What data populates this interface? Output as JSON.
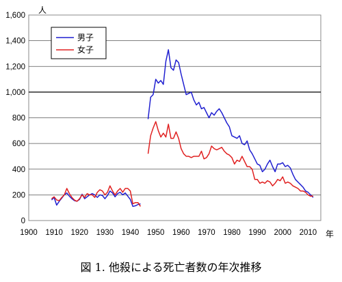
{
  "chart_data": {
    "type": "line",
    "title": "",
    "y_unit": "人",
    "x_unit": "年",
    "ylim": [
      0,
      1600
    ],
    "xlim": [
      1900,
      2015
    ],
    "y_ticks": [
      0,
      200,
      400,
      600,
      800,
      1000,
      1200,
      1400,
      1600
    ],
    "y_tick_labels": [
      "0",
      "200",
      "400",
      "600",
      "800",
      "1,000",
      "1,200",
      "1,400",
      "1,600"
    ],
    "x_ticks": [
      1900,
      1910,
      1920,
      1930,
      1940,
      1950,
      1960,
      1970,
      1980,
      1990,
      2000,
      2010
    ],
    "x_tick_labels": [
      "1900",
      "1910",
      "1920",
      "1930",
      "1940",
      "1950",
      "1960",
      "1970",
      "1980",
      "1990",
      "2000",
      "2010"
    ],
    "grid": "horizontal",
    "legend_position": "top-left",
    "series": [
      {
        "name": "男子",
        "color": "#1f1fd0",
        "segments": [
          [
            [
              1909,
              160
            ],
            [
              1910,
              180
            ],
            [
              1911,
              120
            ],
            [
              1912,
              150
            ],
            [
              1913,
              175
            ],
            [
              1914,
              200
            ],
            [
              1915,
              215
            ],
            [
              1916,
              190
            ],
            [
              1917,
              170
            ],
            [
              1918,
              155
            ],
            [
              1919,
              150
            ],
            [
              1920,
              165
            ],
            [
              1921,
              205
            ],
            [
              1922,
              170
            ],
            [
              1923,
              185
            ],
            [
              1924,
              200
            ],
            [
              1925,
              210
            ],
            [
              1926,
              200
            ],
            [
              1927,
              180
            ],
            [
              1928,
              200
            ],
            [
              1929,
              195
            ],
            [
              1930,
              170
            ],
            [
              1931,
              195
            ],
            [
              1932,
              230
            ],
            [
              1933,
              215
            ],
            [
              1934,
              185
            ],
            [
              1935,
              210
            ],
            [
              1936,
              220
            ],
            [
              1937,
              200
            ],
            [
              1938,
              215
            ],
            [
              1939,
              190
            ],
            [
              1940,
              165
            ],
            [
              1941,
              110
            ],
            [
              1942,
              115
            ],
            [
              1943,
              125
            ],
            [
              1944,
              130
            ]
          ],
          [
            [
              1947,
              790
            ],
            [
              1948,
              960
            ],
            [
              1949,
              980
            ],
            [
              1950,
              1100
            ],
            [
              1951,
              1070
            ],
            [
              1952,
              1090
            ],
            [
              1953,
              1060
            ],
            [
              1954,
              1240
            ],
            [
              1955,
              1330
            ],
            [
              1956,
              1190
            ],
            [
              1957,
              1170
            ],
            [
              1958,
              1250
            ],
            [
              1959,
              1230
            ],
            [
              1960,
              1140
            ],
            [
              1961,
              1060
            ],
            [
              1962,
              980
            ],
            [
              1963,
              990
            ],
            [
              1964,
              1000
            ],
            [
              1965,
              940
            ],
            [
              1966,
              900
            ],
            [
              1967,
              920
            ],
            [
              1968,
              870
            ],
            [
              1969,
              880
            ],
            [
              1970,
              840
            ],
            [
              1971,
              800
            ],
            [
              1972,
              840
            ],
            [
              1973,
              820
            ],
            [
              1974,
              850
            ],
            [
              1975,
              870
            ],
            [
              1976,
              840
            ],
            [
              1977,
              800
            ],
            [
              1978,
              760
            ],
            [
              1979,
              730
            ],
            [
              1980,
              660
            ],
            [
              1981,
              650
            ],
            [
              1982,
              640
            ],
            [
              1983,
              660
            ],
            [
              1984,
              600
            ],
            [
              1985,
              590
            ],
            [
              1986,
              620
            ],
            [
              1987,
              550
            ],
            [
              1988,
              520
            ],
            [
              1989,
              480
            ],
            [
              1990,
              440
            ],
            [
              1991,
              430
            ],
            [
              1992,
              380
            ],
            [
              1993,
              400
            ],
            [
              1994,
              440
            ],
            [
              1995,
              470
            ],
            [
              1996,
              420
            ],
            [
              1997,
              380
            ],
            [
              1998,
              440
            ],
            [
              1999,
              440
            ],
            [
              2000,
              450
            ],
            [
              2001,
              420
            ],
            [
              2002,
              430
            ],
            [
              2003,
              410
            ],
            [
              2004,
              360
            ],
            [
              2005,
              320
            ],
            [
              2006,
              300
            ],
            [
              2007,
              280
            ],
            [
              2008,
              260
            ],
            [
              2009,
              230
            ],
            [
              2010,
              220
            ],
            [
              2011,
              200
            ],
            [
              2012,
              180
            ]
          ]
        ]
      },
      {
        "name": "女子",
        "color": "#e02020",
        "segments": [
          [
            [
              1909,
              170
            ],
            [
              1910,
              185
            ],
            [
              1911,
              160
            ],
            [
              1912,
              155
            ],
            [
              1913,
              180
            ],
            [
              1914,
              200
            ],
            [
              1915,
              250
            ],
            [
              1916,
              210
            ],
            [
              1917,
              180
            ],
            [
              1918,
              160
            ],
            [
              1919,
              150
            ],
            [
              1920,
              170
            ],
            [
              1921,
              200
            ],
            [
              1922,
              180
            ],
            [
              1923,
              210
            ],
            [
              1924,
              200
            ],
            [
              1925,
              200
            ],
            [
              1926,
              180
            ],
            [
              1927,
              220
            ],
            [
              1928,
              240
            ],
            [
              1929,
              230
            ],
            [
              1930,
              200
            ],
            [
              1931,
              220
            ],
            [
              1932,
              270
            ],
            [
              1933,
              230
            ],
            [
              1934,
              200
            ],
            [
              1935,
              230
            ],
            [
              1936,
              250
            ],
            [
              1937,
              220
            ],
            [
              1938,
              250
            ],
            [
              1939,
              250
            ],
            [
              1940,
              230
            ],
            [
              1941,
              130
            ],
            [
              1942,
              140
            ],
            [
              1943,
              140
            ],
            [
              1944,
              110
            ]
          ],
          [
            [
              1947,
              520
            ],
            [
              1948,
              660
            ],
            [
              1949,
              720
            ],
            [
              1950,
              770
            ],
            [
              1951,
              700
            ],
            [
              1952,
              650
            ],
            [
              1953,
              680
            ],
            [
              1954,
              650
            ],
            [
              1955,
              750
            ],
            [
              1956,
              640
            ],
            [
              1957,
              640
            ],
            [
              1958,
              690
            ],
            [
              1959,
              640
            ],
            [
              1960,
              560
            ],
            [
              1961,
              520
            ],
            [
              1962,
              500
            ],
            [
              1963,
              500
            ],
            [
              1964,
              490
            ],
            [
              1965,
              500
            ],
            [
              1966,
              500
            ],
            [
              1967,
              500
            ],
            [
              1968,
              540
            ],
            [
              1969,
              480
            ],
            [
              1970,
              490
            ],
            [
              1971,
              520
            ],
            [
              1972,
              580
            ],
            [
              1973,
              560
            ],
            [
              1974,
              550
            ],
            [
              1975,
              560
            ],
            [
              1976,
              570
            ],
            [
              1977,
              540
            ],
            [
              1978,
              520
            ],
            [
              1979,
              510
            ],
            [
              1980,
              490
            ],
            [
              1981,
              440
            ],
            [
              1982,
              470
            ],
            [
              1983,
              460
            ],
            [
              1984,
              500
            ],
            [
              1985,
              460
            ],
            [
              1986,
              420
            ],
            [
              1987,
              420
            ],
            [
              1988,
              400
            ],
            [
              1989,
              320
            ],
            [
              1990,
              320
            ],
            [
              1991,
              290
            ],
            [
              1992,
              300
            ],
            [
              1993,
              290
            ],
            [
              1994,
              310
            ],
            [
              1995,
              300
            ],
            [
              1996,
              270
            ],
            [
              1997,
              290
            ],
            [
              1998,
              320
            ],
            [
              1999,
              310
            ],
            [
              2000,
              340
            ],
            [
              2001,
              290
            ],
            [
              2002,
              300
            ],
            [
              2003,
              290
            ],
            [
              2004,
              270
            ],
            [
              2005,
              260
            ],
            [
              2006,
              250
            ],
            [
              2007,
              230
            ],
            [
              2008,
              230
            ],
            [
              2009,
              220
            ],
            [
              2010,
              200
            ],
            [
              2011,
              190
            ],
            [
              2012,
              190
            ]
          ]
        ]
      }
    ]
  },
  "caption": "図 1. 他殺による死亡者数の年次推移"
}
